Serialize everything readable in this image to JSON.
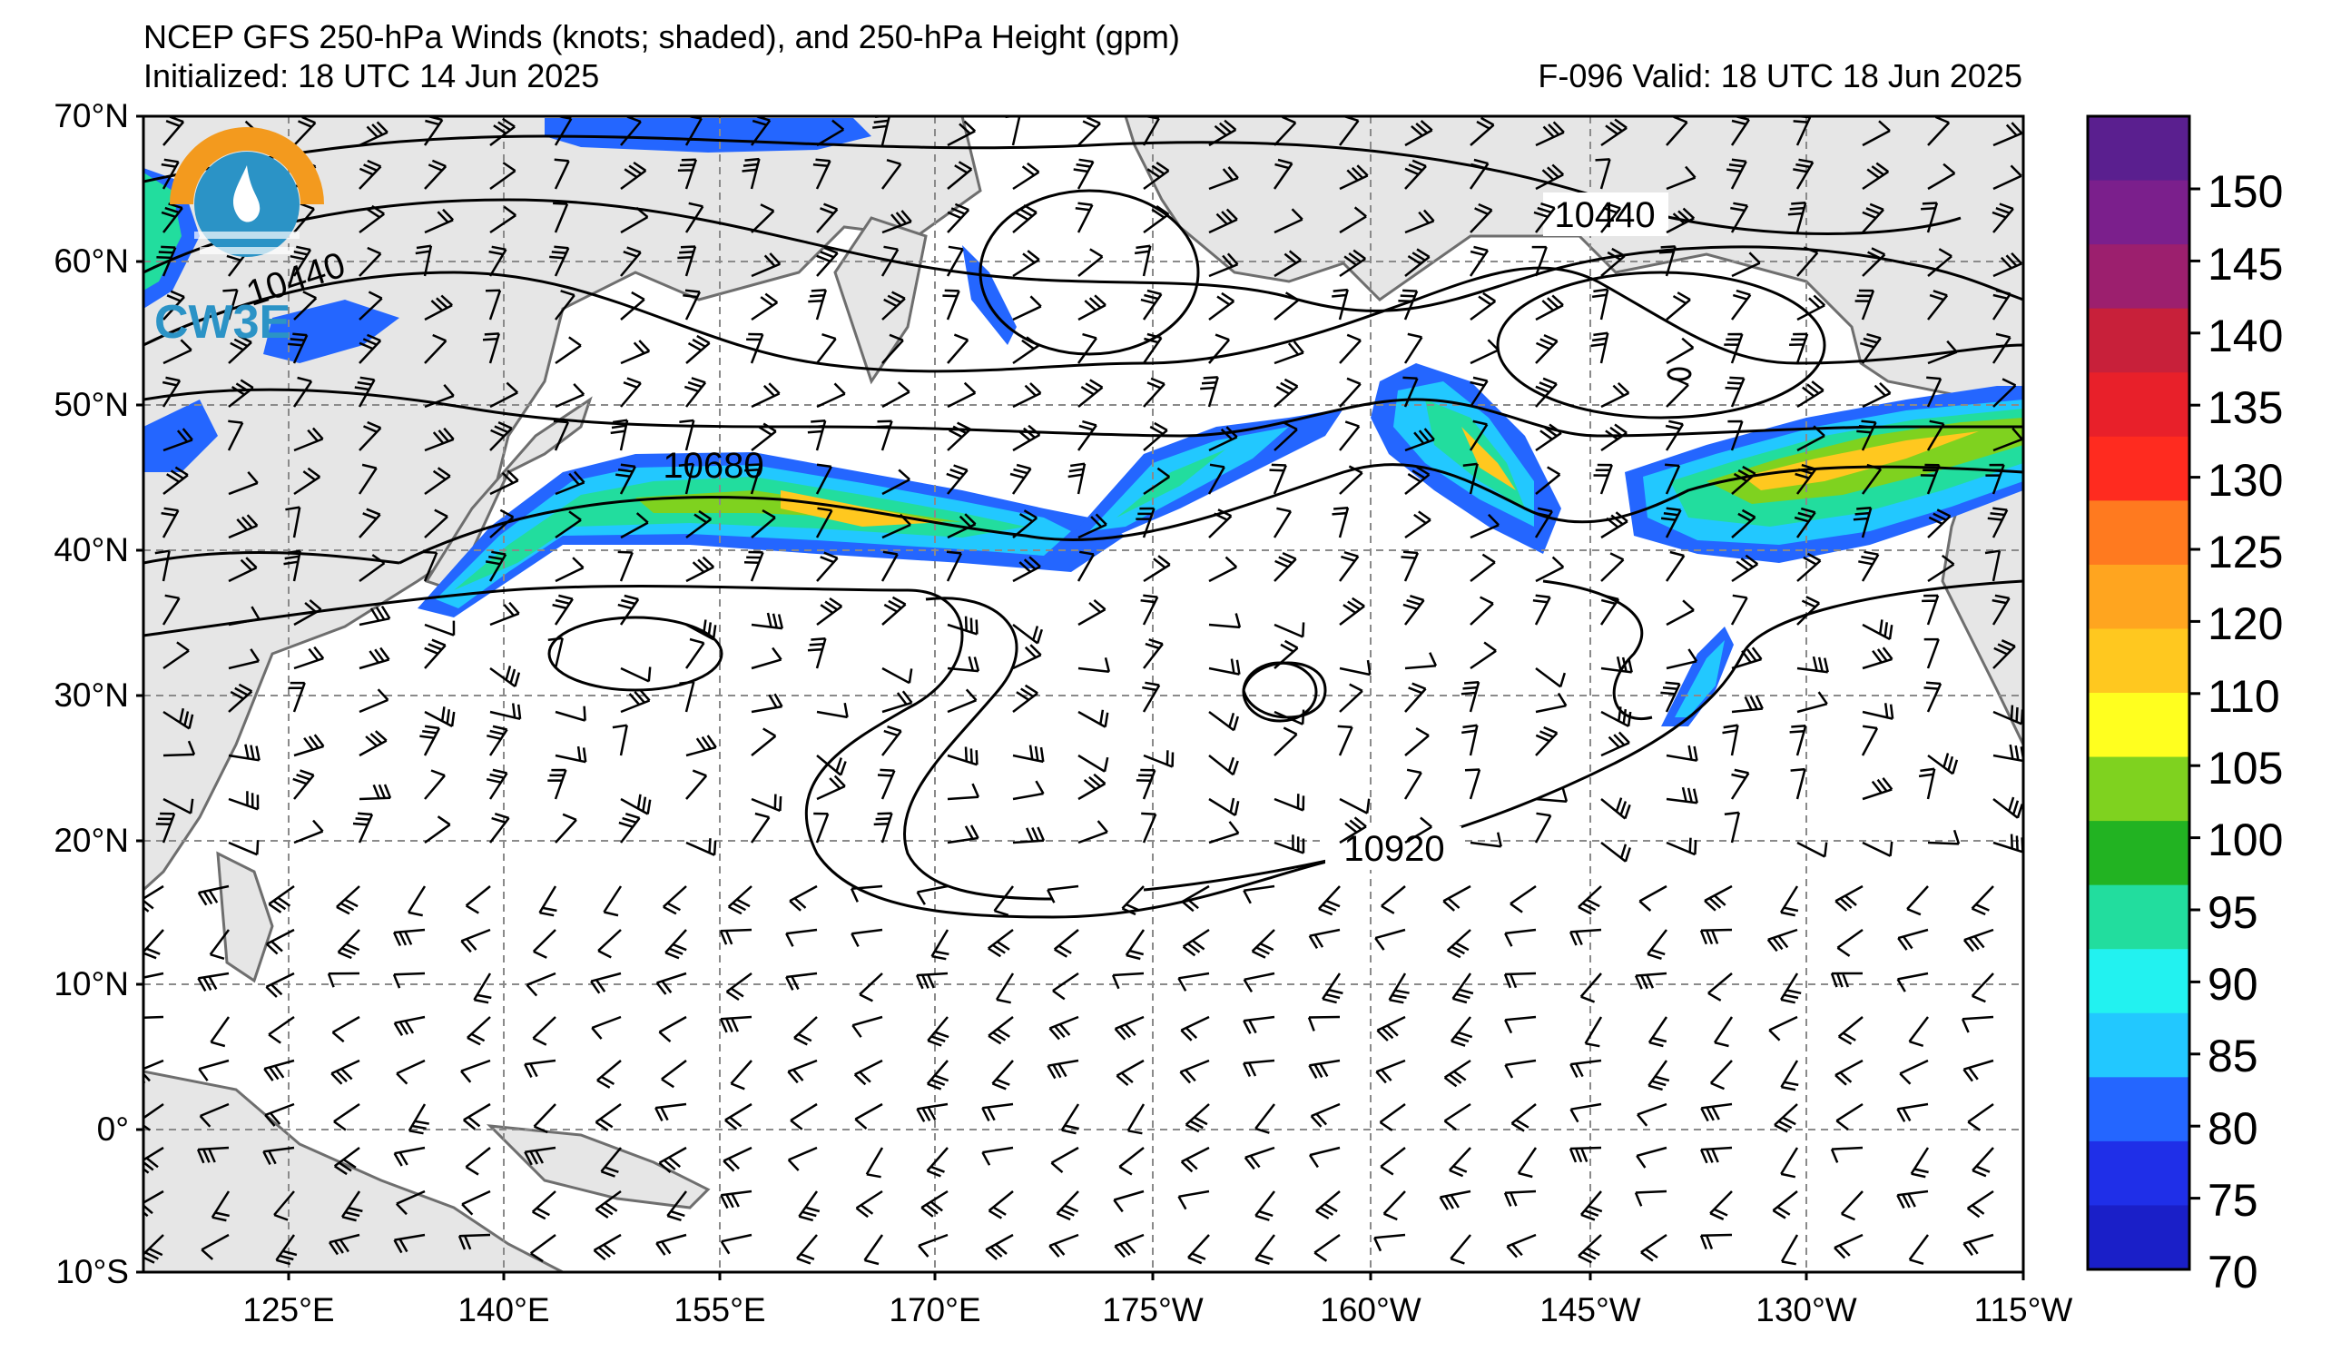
{
  "header": {
    "title": "NCEP GFS 250-hPa Winds (knots; shaded), and 250-hPa Height (gpm)",
    "initialized": "Initialized: 18 UTC 14 Jun 2025",
    "valid": "F-096  Valid: 18 UTC 18 Jun 2025"
  },
  "logo": {
    "text": "CW3E",
    "icon": "cw3e-logo-icon"
  },
  "map": {
    "lat_labels": [
      "70°N",
      "60°N",
      "50°N",
      "40°N",
      "30°N",
      "20°N",
      "10°N",
      "0°",
      "10°S"
    ],
    "lon_labels": [
      "125°E",
      "140°E",
      "155°E",
      "170°E",
      "175°W",
      "160°W",
      "145°W",
      "130°W",
      "115°W"
    ],
    "contour_labels": [
      "10440",
      "10680",
      "10920",
      "10440"
    ],
    "land_color": "#e6e6e6",
    "coast_color": "#6e6e6e",
    "grid_style": "dashed-gray"
  },
  "colorbar": {
    "ticks": [
      "150",
      "145",
      "140",
      "135",
      "130",
      "125",
      "120",
      "110",
      "105",
      "100",
      "95",
      "90",
      "85",
      "80",
      "75",
      "70"
    ],
    "colors": [
      "#5a1f8f",
      "#7b1f8c",
      "#9c1f6e",
      "#c8203a",
      "#e8202a",
      "#ff2b1f",
      "#ff7a1f",
      "#ffa51f",
      "#ffc81f",
      "#ffff1f",
      "#7fd21f",
      "#22b322",
      "#22dd9e",
      "#22f2f0",
      "#22c8ff",
      "#2466ff",
      "#1f2fe8",
      "#1a1fc8"
    ]
  }
}
